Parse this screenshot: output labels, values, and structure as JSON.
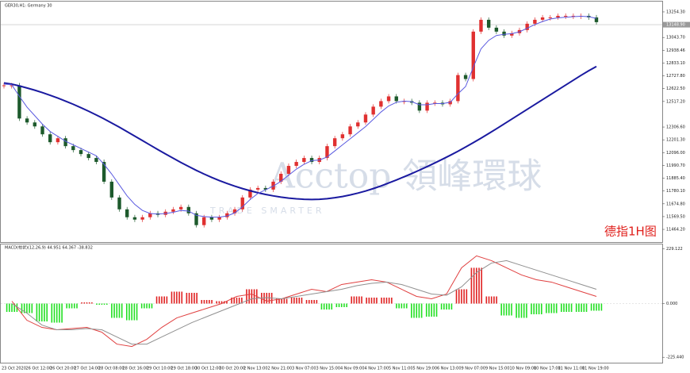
{
  "chart_data": [
    {
      "type": "candlestick",
      "title": "GER30,H1: Germany 30",
      "annotation": "德指1H图",
      "watermark": "Acctop 領峰環球",
      "watermark_sub": "TRADE SMARTER",
      "current_price": {
        "value": 13148.9,
        "label": "13148.90"
      },
      "up_color": "#e03030",
      "down_color": "#1d5a2c",
      "values": [
        12649.8,
        12649.8,
        12376.8,
        12344.3,
        12311.8,
        12246.8,
        12181.8,
        12214.3,
        12149.3,
        12116.8,
        12084.3,
        12051.8,
        12019.3,
        11856.8,
        11726.8,
        11629.3,
        11564.3,
        11544.8,
        11564.3,
        11596.8,
        11583.8,
        11609.8,
        11629.3,
        11648.8,
        11596.8,
        11499.3,
        11564.3,
        11544.8,
        11564.3,
        11596.8,
        11629.3,
        11726.8,
        11791.8,
        11804.8,
        11791.8,
        11856.8,
        11921.8,
        11986.8,
        12019.3,
        12051.8,
        12019.3,
        12051.8,
        12149.3,
        12214.3,
        12246.8,
        12311.8,
        12344.3,
        12409.3,
        12474.3,
        12519.8,
        12558.8,
        12519.8,
        12519.8,
        12506.8,
        12441.8,
        12506.8,
        12506.8,
        12493.8,
        12519.8,
        12734.3,
        12701.8,
        13091.8,
        13189.3,
        13124.3,
        13091.8,
        13059.3,
        13078.8,
        13104.8,
        13156.8,
        13189.3,
        13208.8,
        13208.8,
        13221.8,
        13221.8,
        13221.8,
        13221.8,
        13208.8,
        13169.8
      ],
      "lines": [
        {
          "color": "#1a1aa0",
          "width": 2,
          "values": [
            12670,
            12660,
            12645,
            12628,
            12610,
            12590,
            12568,
            12545,
            12520,
            12494,
            12466,
            12437,
            12406,
            12374,
            12340,
            12305,
            12269,
            12232,
            12195,
            12158,
            12121,
            12085,
            12050,
            12015,
            11982,
            11950,
            11920,
            11892,
            11866,
            11842,
            11820,
            11800,
            11782,
            11766,
            11752,
            11740,
            11730,
            11722,
            11716,
            11712,
            11710,
            11712,
            11717,
            11725,
            11735,
            11748,
            11763,
            11780,
            11800,
            11822,
            11846,
            11871,
            11897,
            11924,
            11952,
            11981,
            12011,
            12042,
            12074,
            12107,
            12142,
            12178,
            12215,
            12253,
            12292,
            12332,
            12372,
            12412,
            12452,
            12492,
            12532,
            12572,
            12612,
            12652,
            12692,
            12732,
            12770,
            12805
          ]
        },
        {
          "color": "#5a5ae0",
          "width": 1,
          "values": [
            12660,
            12655,
            12560,
            12470,
            12400,
            12330,
            12270,
            12230,
            12190,
            12160,
            12130,
            12100,
            12070,
            12000,
            11920,
            11830,
            11740,
            11670,
            11620,
            11595,
            11590,
            11595,
            11605,
            11620,
            11615,
            11580,
            11570,
            11565,
            11565,
            11575,
            11600,
            11650,
            11710,
            11760,
            11790,
            11820,
            11860,
            11910,
            11960,
            12000,
            12030,
            12035,
            12060,
            12110,
            12160,
            12210,
            12260,
            12310,
            12370,
            12430,
            12480,
            12510,
            12520,
            12515,
            12490,
            12490,
            12500,
            12500,
            12510,
            12580,
            12640,
            12800,
            12950,
            13020,
            13060,
            13070,
            13075,
            13090,
            13120,
            13150,
            13175,
            13195,
            13205,
            13210,
            13215,
            13218,
            13215,
            13200
          ]
        }
      ],
      "ylim": [
        11360,
        13339
      ],
      "yticks": [
        {
          "value": 13254.3,
          "label": "13254.30"
        },
        {
          "value": 13043.7,
          "label": "13043.70"
        },
        12938.46,
        {
          "value": 12833.1,
          "label": "12833.10"
        },
        {
          "value": 12727.8,
          "label": "12727.80"
        },
        {
          "value": 12622.5,
          "label": "12622.50"
        },
        {
          "value": 12517.2,
          "label": "12517.20"
        },
        {
          "value": 12306.6,
          "label": "12306.60"
        },
        {
          "value": 12201.3,
          "label": "12201.30"
        },
        {
          "value": 12096,
          "label": "12096.00"
        },
        {
          "value": 11990.7,
          "label": "11990.70"
        },
        {
          "value": 11885.4,
          "label": "11885.40"
        },
        {
          "value": 11780.1,
          "label": "11780.10"
        },
        {
          "value": 11674.8,
          "label": "11674.80"
        },
        {
          "value": 11569.5,
          "label": "11569.50"
        },
        {
          "value": 11464.2,
          "label": "11464.20"
        }
      ],
      "xticklabels": [
        "23 Oct 2020",
        "26 Oct 12:00",
        "26 Oct 20:00",
        "27 Oct 14:00",
        "28 Oct 08:00",
        "28 Oct 16:00",
        "29 Oct 10:00",
        "29 Oct 18:00",
        "30 Oct 12:00",
        "30 Oct 20:00",
        "2 Nov 13:00",
        "2 Nov 21:00",
        "3 Nov 07:00",
        "3 Nov 15:00",
        "4 Nov 09:00",
        "4 Nov 17:00",
        "5 Nov 11:00",
        "5 Nov 19:00",
        "6 Nov 13:00",
        "9 Nov 07:00",
        "9 Nov 15:00",
        "10 Nov 09:00",
        "10 Nov 17:00",
        "11 Nov 11:00",
        "11 Nov 19:00"
      ]
    },
    {
      "type": "macd",
      "title": "MACD(柱状)(12,26,9) 44.951 64.367 -38.832",
      "up_color": "#e02020",
      "down_color": "#22e022",
      "values": [
        -35,
        -40,
        -75,
        -80,
        -20,
        5,
        -5,
        -60,
        -70,
        -20,
        30,
        50,
        45,
        15,
        10,
        25,
        60,
        45,
        20,
        25,
        15,
        -25,
        -15,
        30,
        25,
        25,
        -20,
        -60,
        -55,
        -25,
        60,
        150,
        30,
        -50,
        -60,
        -45,
        -40,
        -35,
        -35,
        -30
      ],
      "lines": [
        {
          "color": "#e04040",
          "width": 1,
          "values": [
            10,
            -70,
            -100,
            -110,
            -105,
            -100,
            -120,
            -170,
            -180,
            -150,
            -100,
            -60,
            -40,
            -20,
            0,
            30,
            40,
            10,
            20,
            40,
            60,
            50,
            80,
            90,
            100,
            90,
            60,
            30,
            20,
            40,
            150,
            200,
            180,
            150,
            120,
            100,
            90,
            70,
            50,
            30
          ]
        },
        {
          "color": "#909090",
          "width": 1,
          "values": [
            0,
            -40,
            -90,
            -110,
            -110,
            -105,
            -110,
            -140,
            -170,
            -170,
            -140,
            -110,
            -80,
            -55,
            -30,
            -5,
            20,
            25,
            20,
            30,
            40,
            50,
            60,
            75,
            85,
            90,
            80,
            60,
            40,
            35,
            70,
            130,
            170,
            180,
            160,
            140,
            120,
            100,
            80,
            60
          ]
        }
      ],
      "ylim": [
        -248,
        248
      ],
      "yticks": [
        229.122,
        {
          "value": 0,
          "label": "0.000"
        },
        {
          "value": -225.44,
          "label": "-225.440"
        }
      ]
    }
  ]
}
